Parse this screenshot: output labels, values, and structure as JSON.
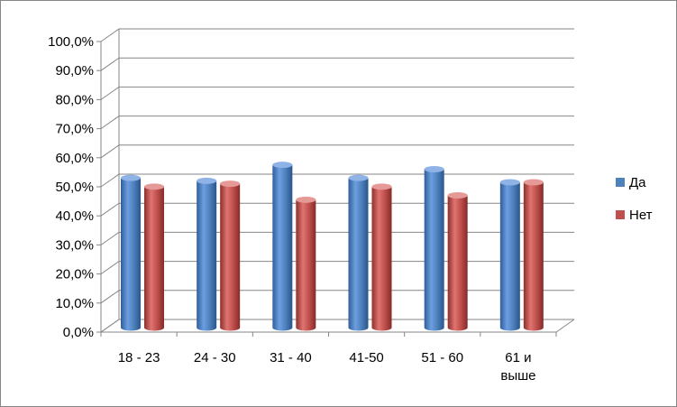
{
  "chart_data": {
    "type": "bar",
    "style": "3d-cylinder",
    "categories": [
      "18 - 23",
      "24 - 30",
      "31 - 40",
      "41-50",
      "51 - 60",
      "61 и выше"
    ],
    "category_lines": [
      [
        "18 - 23"
      ],
      [
        "24 - 30"
      ],
      [
        "31 - 40"
      ],
      [
        "41-50"
      ],
      [
        "51 - 60"
      ],
      [
        "61 и",
        "выше"
      ]
    ],
    "series": [
      {
        "name": "Да",
        "color": "#4F81BD",
        "values": [
          51.5,
          50.5,
          56.0,
          51.5,
          54.5,
          50.0
        ]
      },
      {
        "name": "Нет",
        "color": "#C0504D",
        "values": [
          48.5,
          49.5,
          44.0,
          48.5,
          45.5,
          50.0
        ]
      }
    ],
    "y_ticks": [
      "0,0%",
      "10,0%",
      "20,0%",
      "30,0%",
      "40,0%",
      "50,0%",
      "60,0%",
      "70,0%",
      "80,0%",
      "90,0%",
      "100,0%"
    ],
    "ylim": [
      0,
      100
    ],
    "grid": true,
    "legend": "right",
    "title": "",
    "xlabel": "",
    "ylabel": ""
  }
}
